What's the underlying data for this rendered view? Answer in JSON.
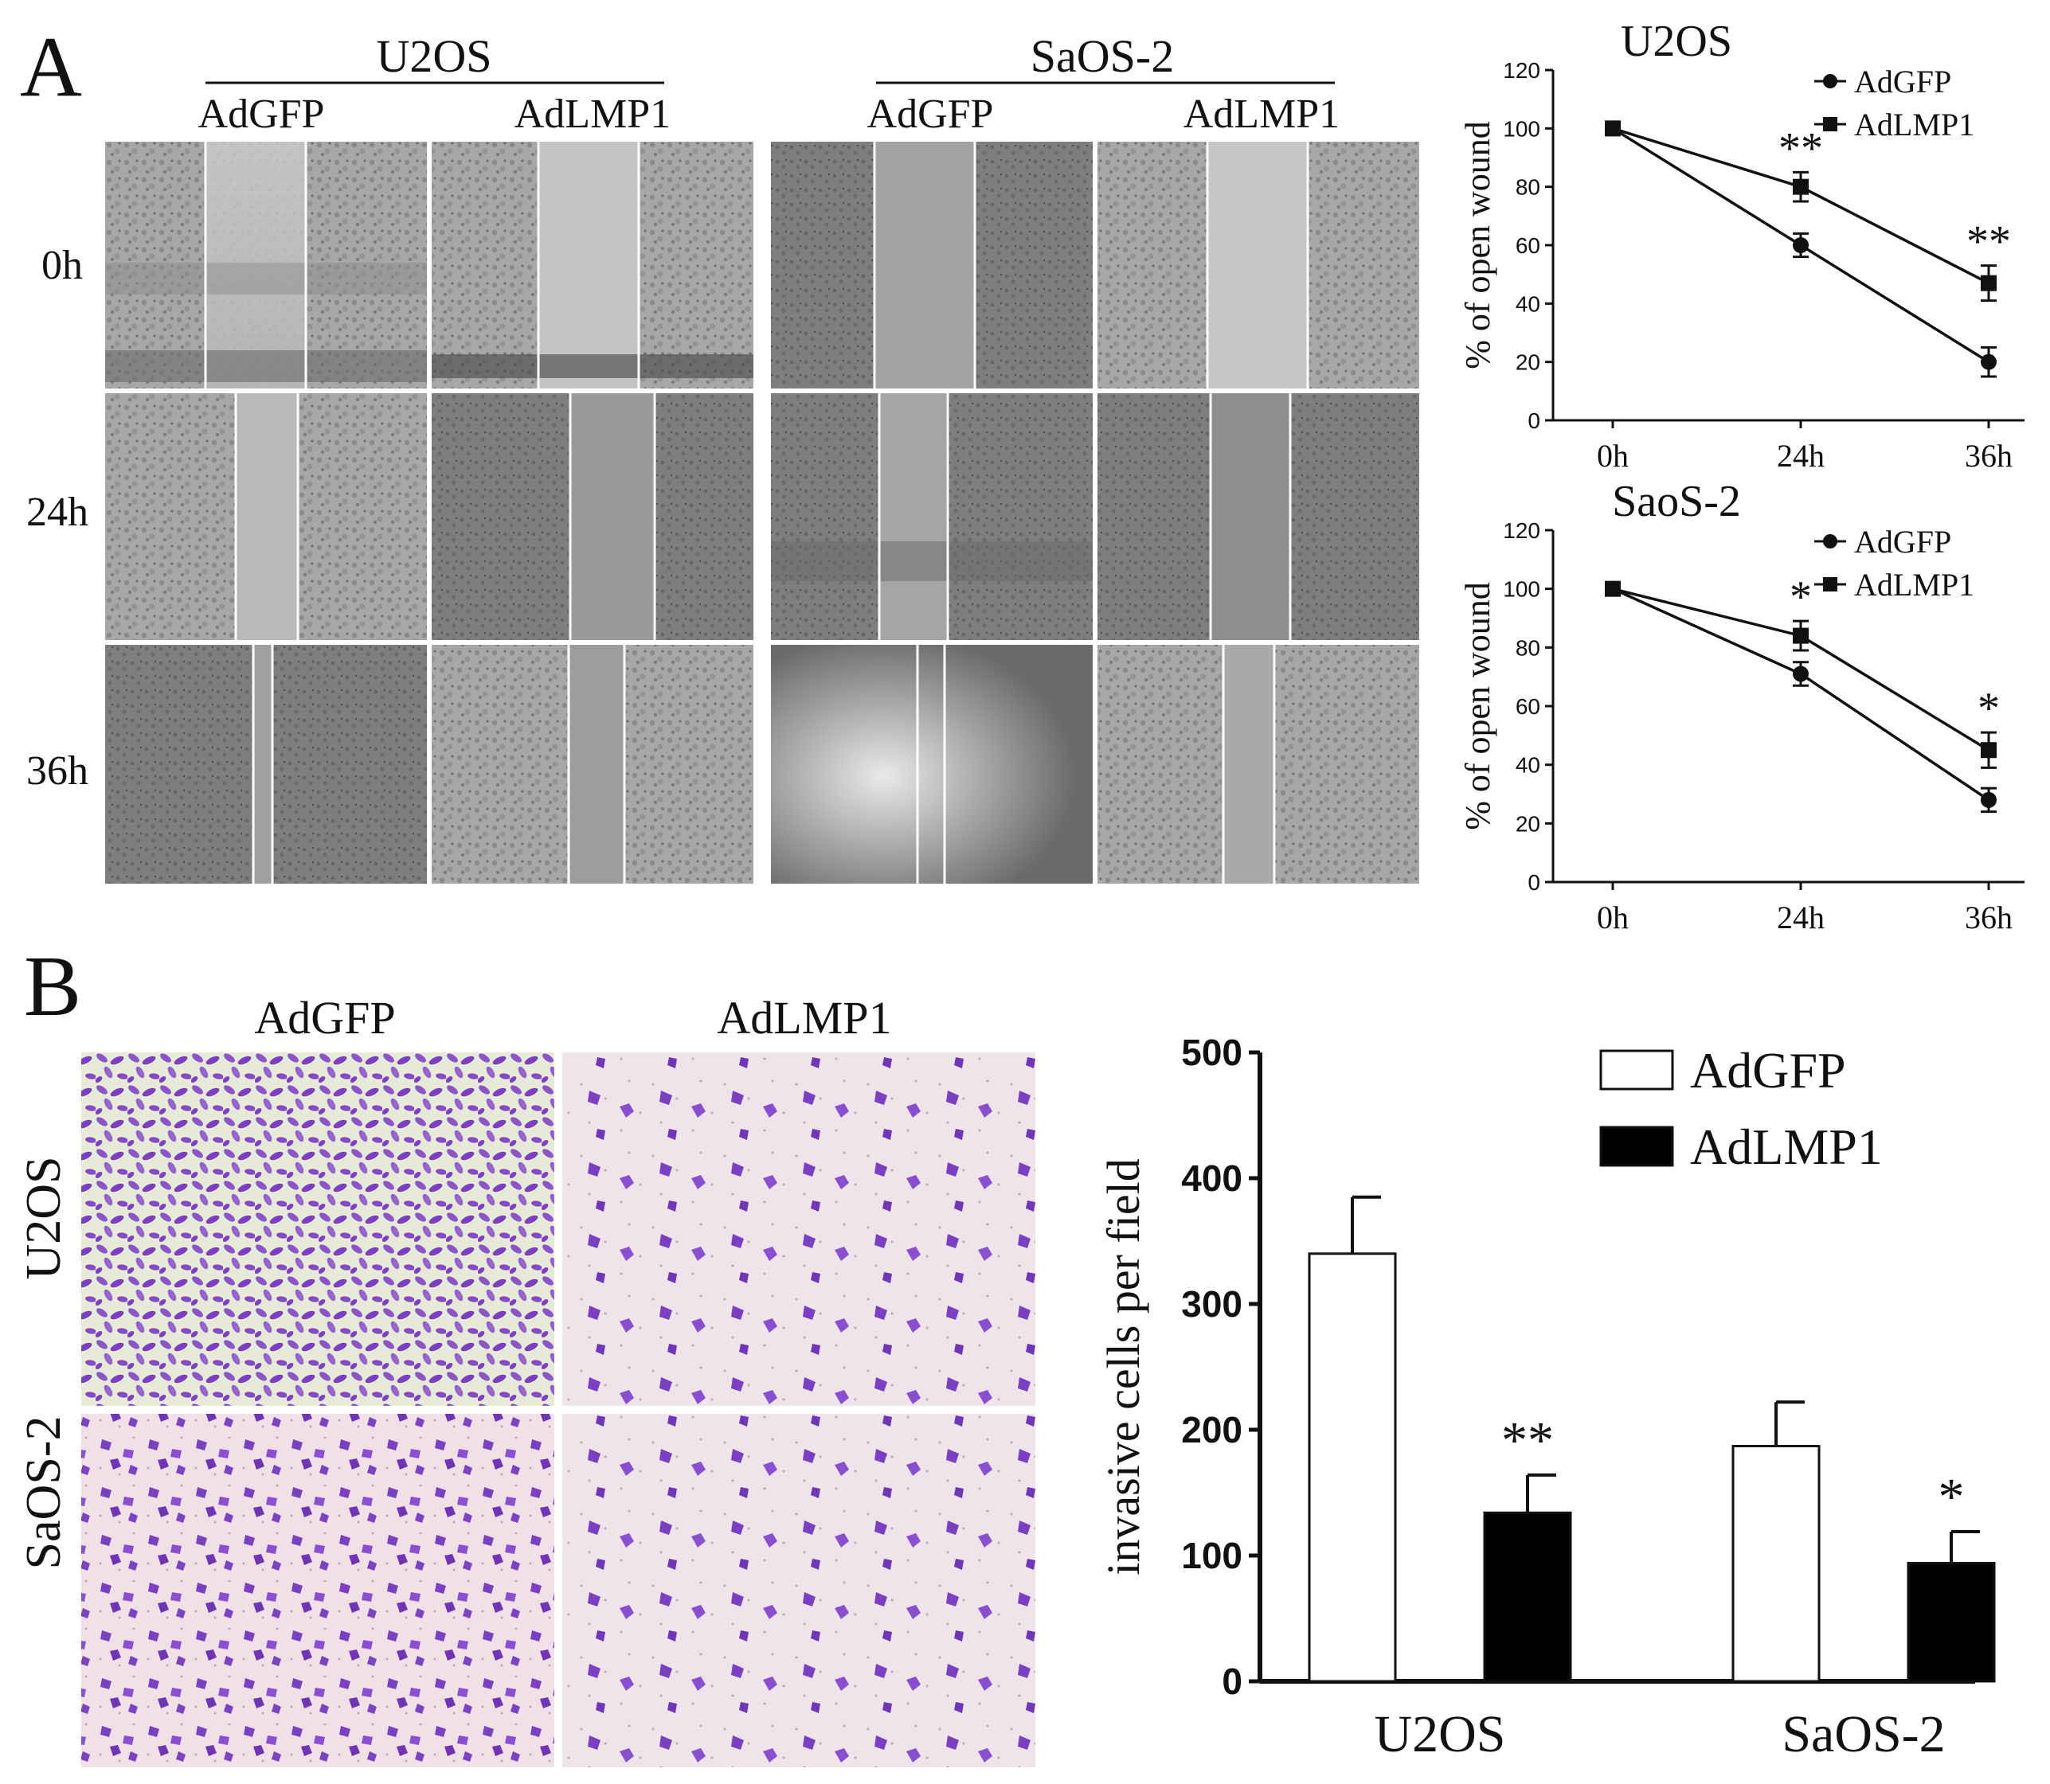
{
  "panel_a": {
    "label": "A",
    "groups": [
      {
        "name": "U2OS",
        "conditions": [
          "AdGFP",
          "AdLMP1"
        ]
      },
      {
        "name": "SaOS-2",
        "conditions": [
          "AdGFP",
          "AdLMP1"
        ]
      }
    ],
    "timepoints": [
      "0h",
      "24h",
      "36h"
    ]
  },
  "panel_b": {
    "label": "B",
    "columns": [
      "AdGFP",
      "AdLMP1"
    ],
    "rows": [
      "U2OS",
      "SaOS-2"
    ]
  },
  "colors": {
    "stain_purple": "#7a3fc2",
    "stain_bg_pink": "#f0e1e6",
    "stain_bg_green": "#e6ead7",
    "brightfield_gray": "#9a9a9a",
    "bar_adlmp1": "#000000",
    "bar_adgfp": "#ffffff"
  },
  "chart_data": [
    {
      "type": "line",
      "title": "U2OS",
      "ylabel": "% of open wound",
      "xlabel": "",
      "x": [
        "0h",
        "24h",
        "36h"
      ],
      "ylim": [
        0,
        120
      ],
      "yticks": [
        0,
        20,
        40,
        60,
        80,
        100,
        120
      ],
      "series": [
        {
          "name": "AdGFP",
          "marker": "circle",
          "values": [
            100,
            60,
            20
          ],
          "errors": [
            0,
            4,
            5
          ]
        },
        {
          "name": "AdLMP1",
          "marker": "square",
          "values": [
            100,
            80,
            47
          ],
          "errors": [
            0,
            5,
            6
          ]
        }
      ],
      "annotations": [
        {
          "x": "24h",
          "text": "**"
        },
        {
          "x": "36h",
          "text": "**"
        }
      ],
      "legend": "top-right"
    },
    {
      "type": "line",
      "title": "SaoS-2",
      "ylabel": "% of open wound",
      "xlabel": "",
      "x": [
        "0h",
        "24h",
        "36h"
      ],
      "ylim": [
        0,
        120
      ],
      "yticks": [
        0,
        20,
        40,
        60,
        80,
        100,
        120
      ],
      "series": [
        {
          "name": "AdGFP",
          "marker": "circle",
          "values": [
            100,
            71,
            28
          ],
          "errors": [
            0,
            4,
            4
          ]
        },
        {
          "name": "AdLMP1",
          "marker": "square",
          "values": [
            100,
            84,
            45
          ],
          "errors": [
            0,
            5,
            6
          ]
        }
      ],
      "annotations": [
        {
          "x": "24h",
          "text": "*"
        },
        {
          "x": "36h",
          "text": "*"
        }
      ],
      "legend": "top-right"
    },
    {
      "type": "bar",
      "title": "",
      "xlabel": "",
      "ylabel": "invasive cells per field",
      "categories": [
        "U2OS",
        "SaOS-2"
      ],
      "ylim": [
        0,
        500
      ],
      "yticks": [
        0,
        100,
        200,
        300,
        400,
        500
      ],
      "series": [
        {
          "name": "AdGFP",
          "values": [
            340,
            187
          ],
          "errors": [
            45,
            35
          ]
        },
        {
          "name": "AdLMP1",
          "values": [
            134,
            94
          ],
          "errors": [
            30,
            25
          ]
        }
      ],
      "annotations": [
        {
          "category": "U2OS",
          "series": "AdLMP1",
          "text": "**"
        },
        {
          "category": "SaOS-2",
          "series": "AdLMP1",
          "text": "*"
        }
      ],
      "legend": "top-right"
    }
  ]
}
